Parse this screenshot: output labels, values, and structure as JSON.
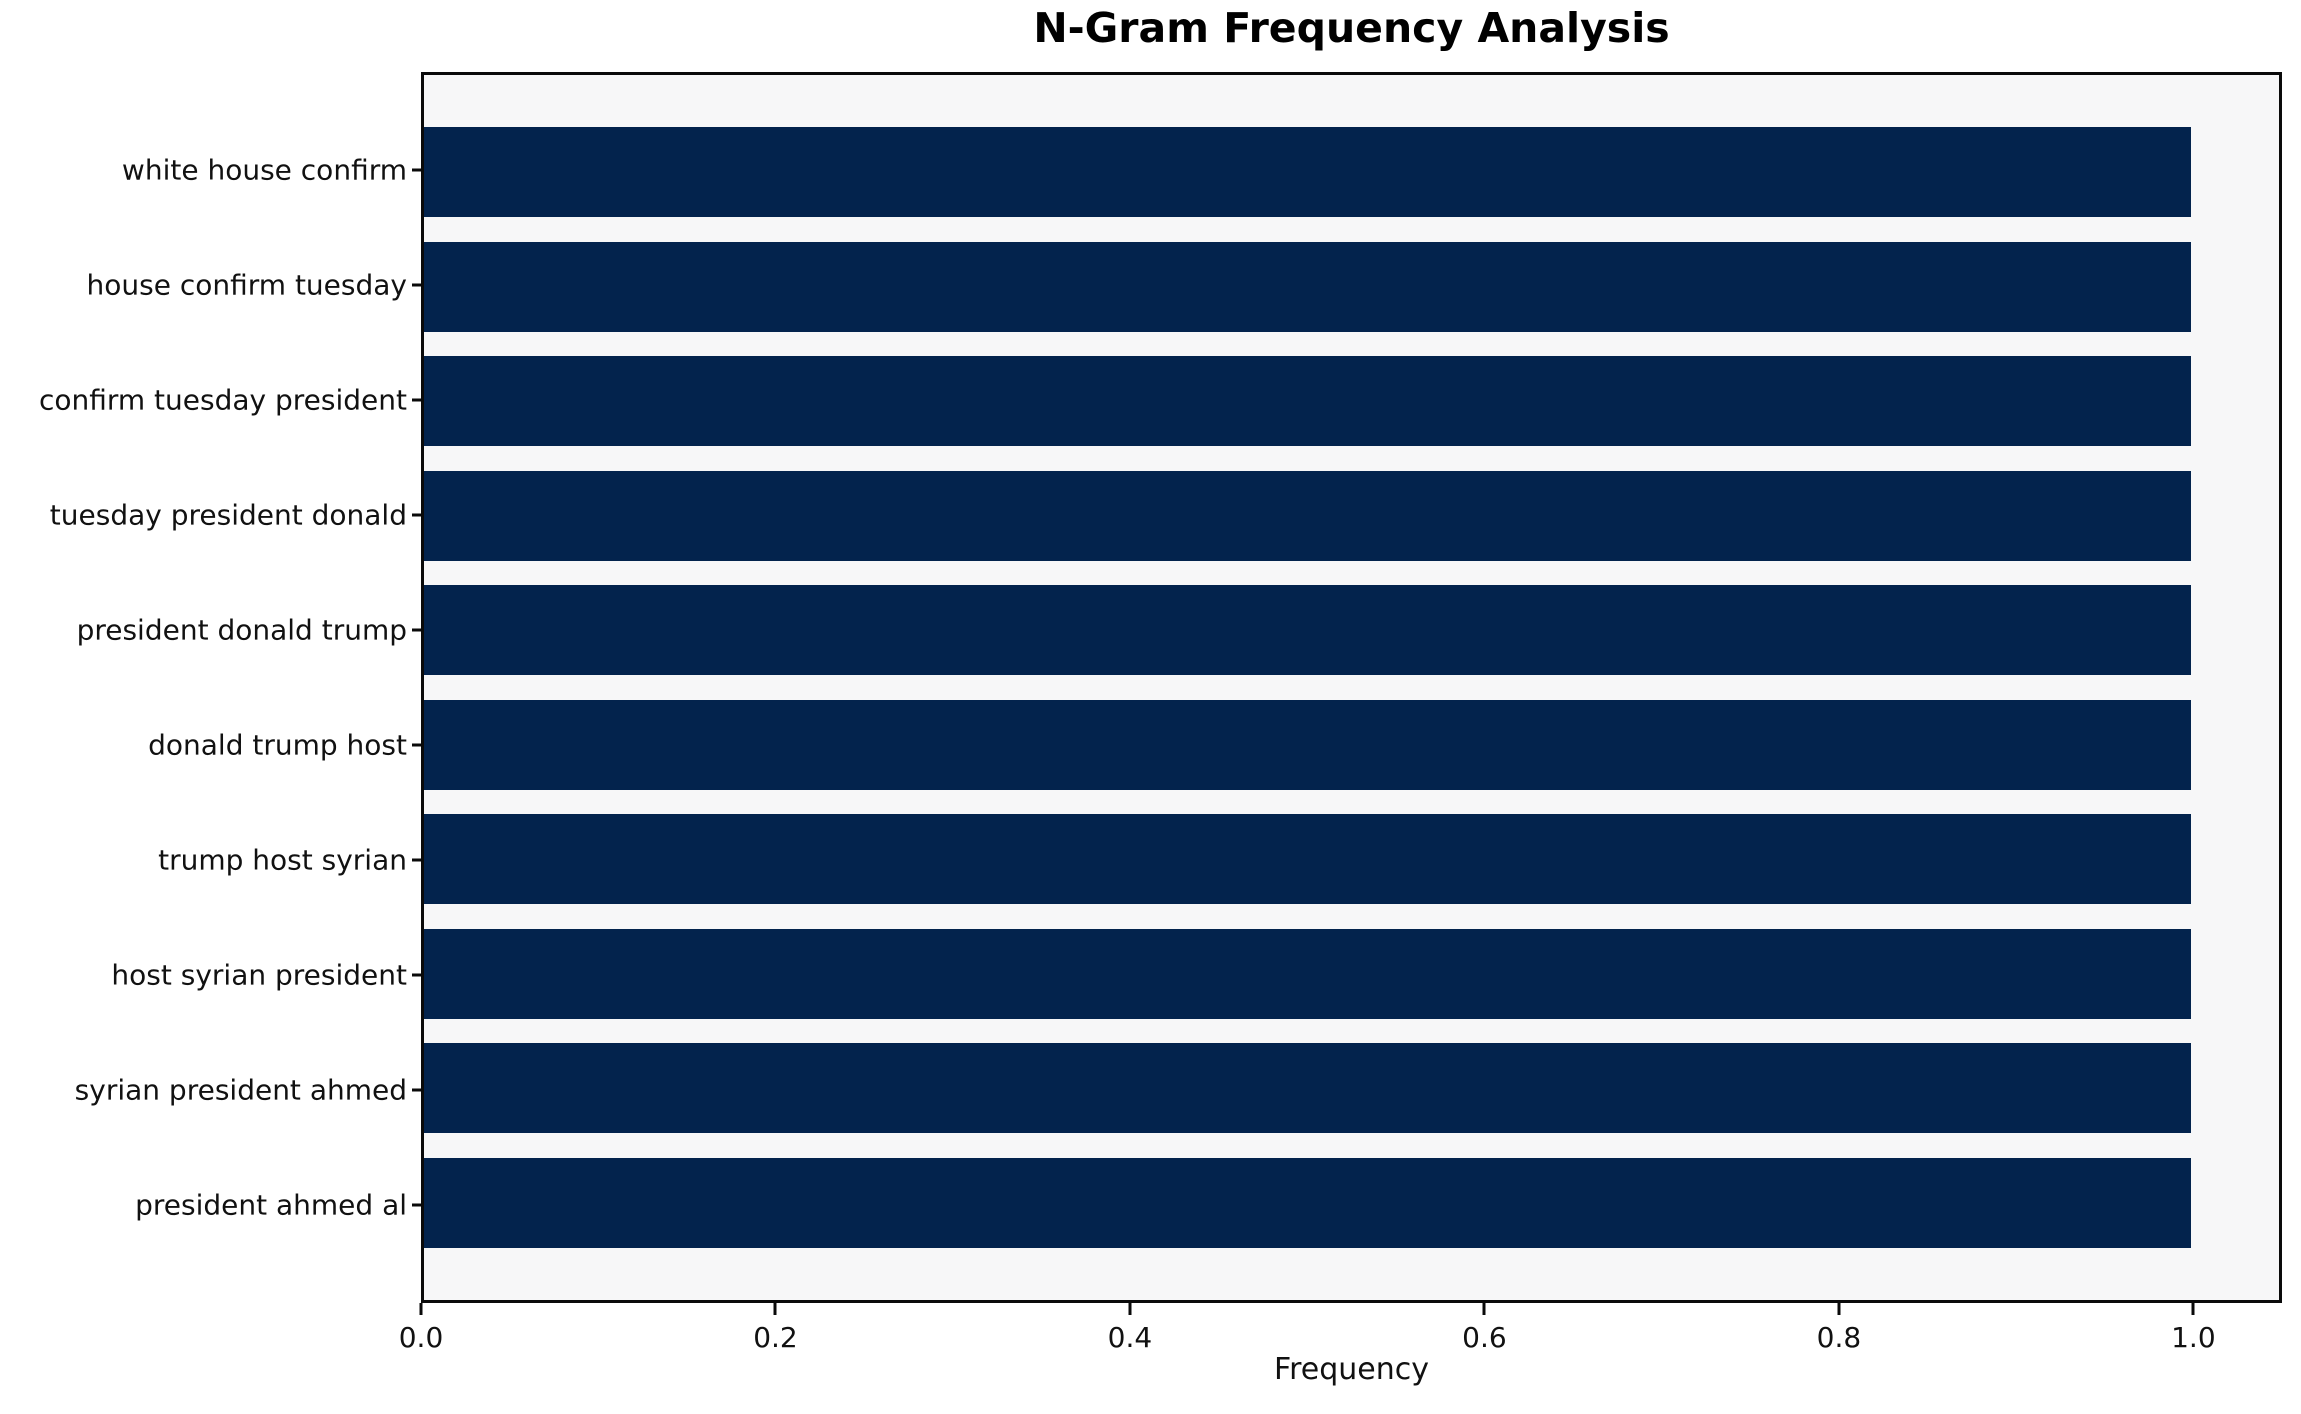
{
  "figure": {
    "background": "#ffffff"
  },
  "chart_data": {
    "type": "bar",
    "orientation": "horizontal",
    "title": "N-Gram Frequency Analysis",
    "xlabel": "Frequency",
    "ylabel": "",
    "categories": [
      "white house confirm",
      "house confirm tuesday",
      "confirm tuesday president",
      "tuesday president donald",
      "president donald trump",
      "donald trump host",
      "trump host syrian",
      "host syrian president",
      "syrian president ahmed",
      "president ahmed al"
    ],
    "values": [
      1.0,
      1.0,
      1.0,
      1.0,
      1.0,
      1.0,
      1.0,
      1.0,
      1.0,
      1.0
    ],
    "xlim": [
      0.0,
      1.05
    ],
    "xticks": [
      0.0,
      0.2,
      0.4,
      0.6,
      0.8,
      1.0
    ],
    "xtick_labels": [
      "0.0",
      "0.2",
      "0.4",
      "0.6",
      "0.8",
      "1.0"
    ],
    "grid": false,
    "legend": null,
    "colors": {
      "bar": "#03234d",
      "plot_background": "#f7f7f8",
      "spine": "#0a0a0a",
      "text": "#111111"
    }
  }
}
